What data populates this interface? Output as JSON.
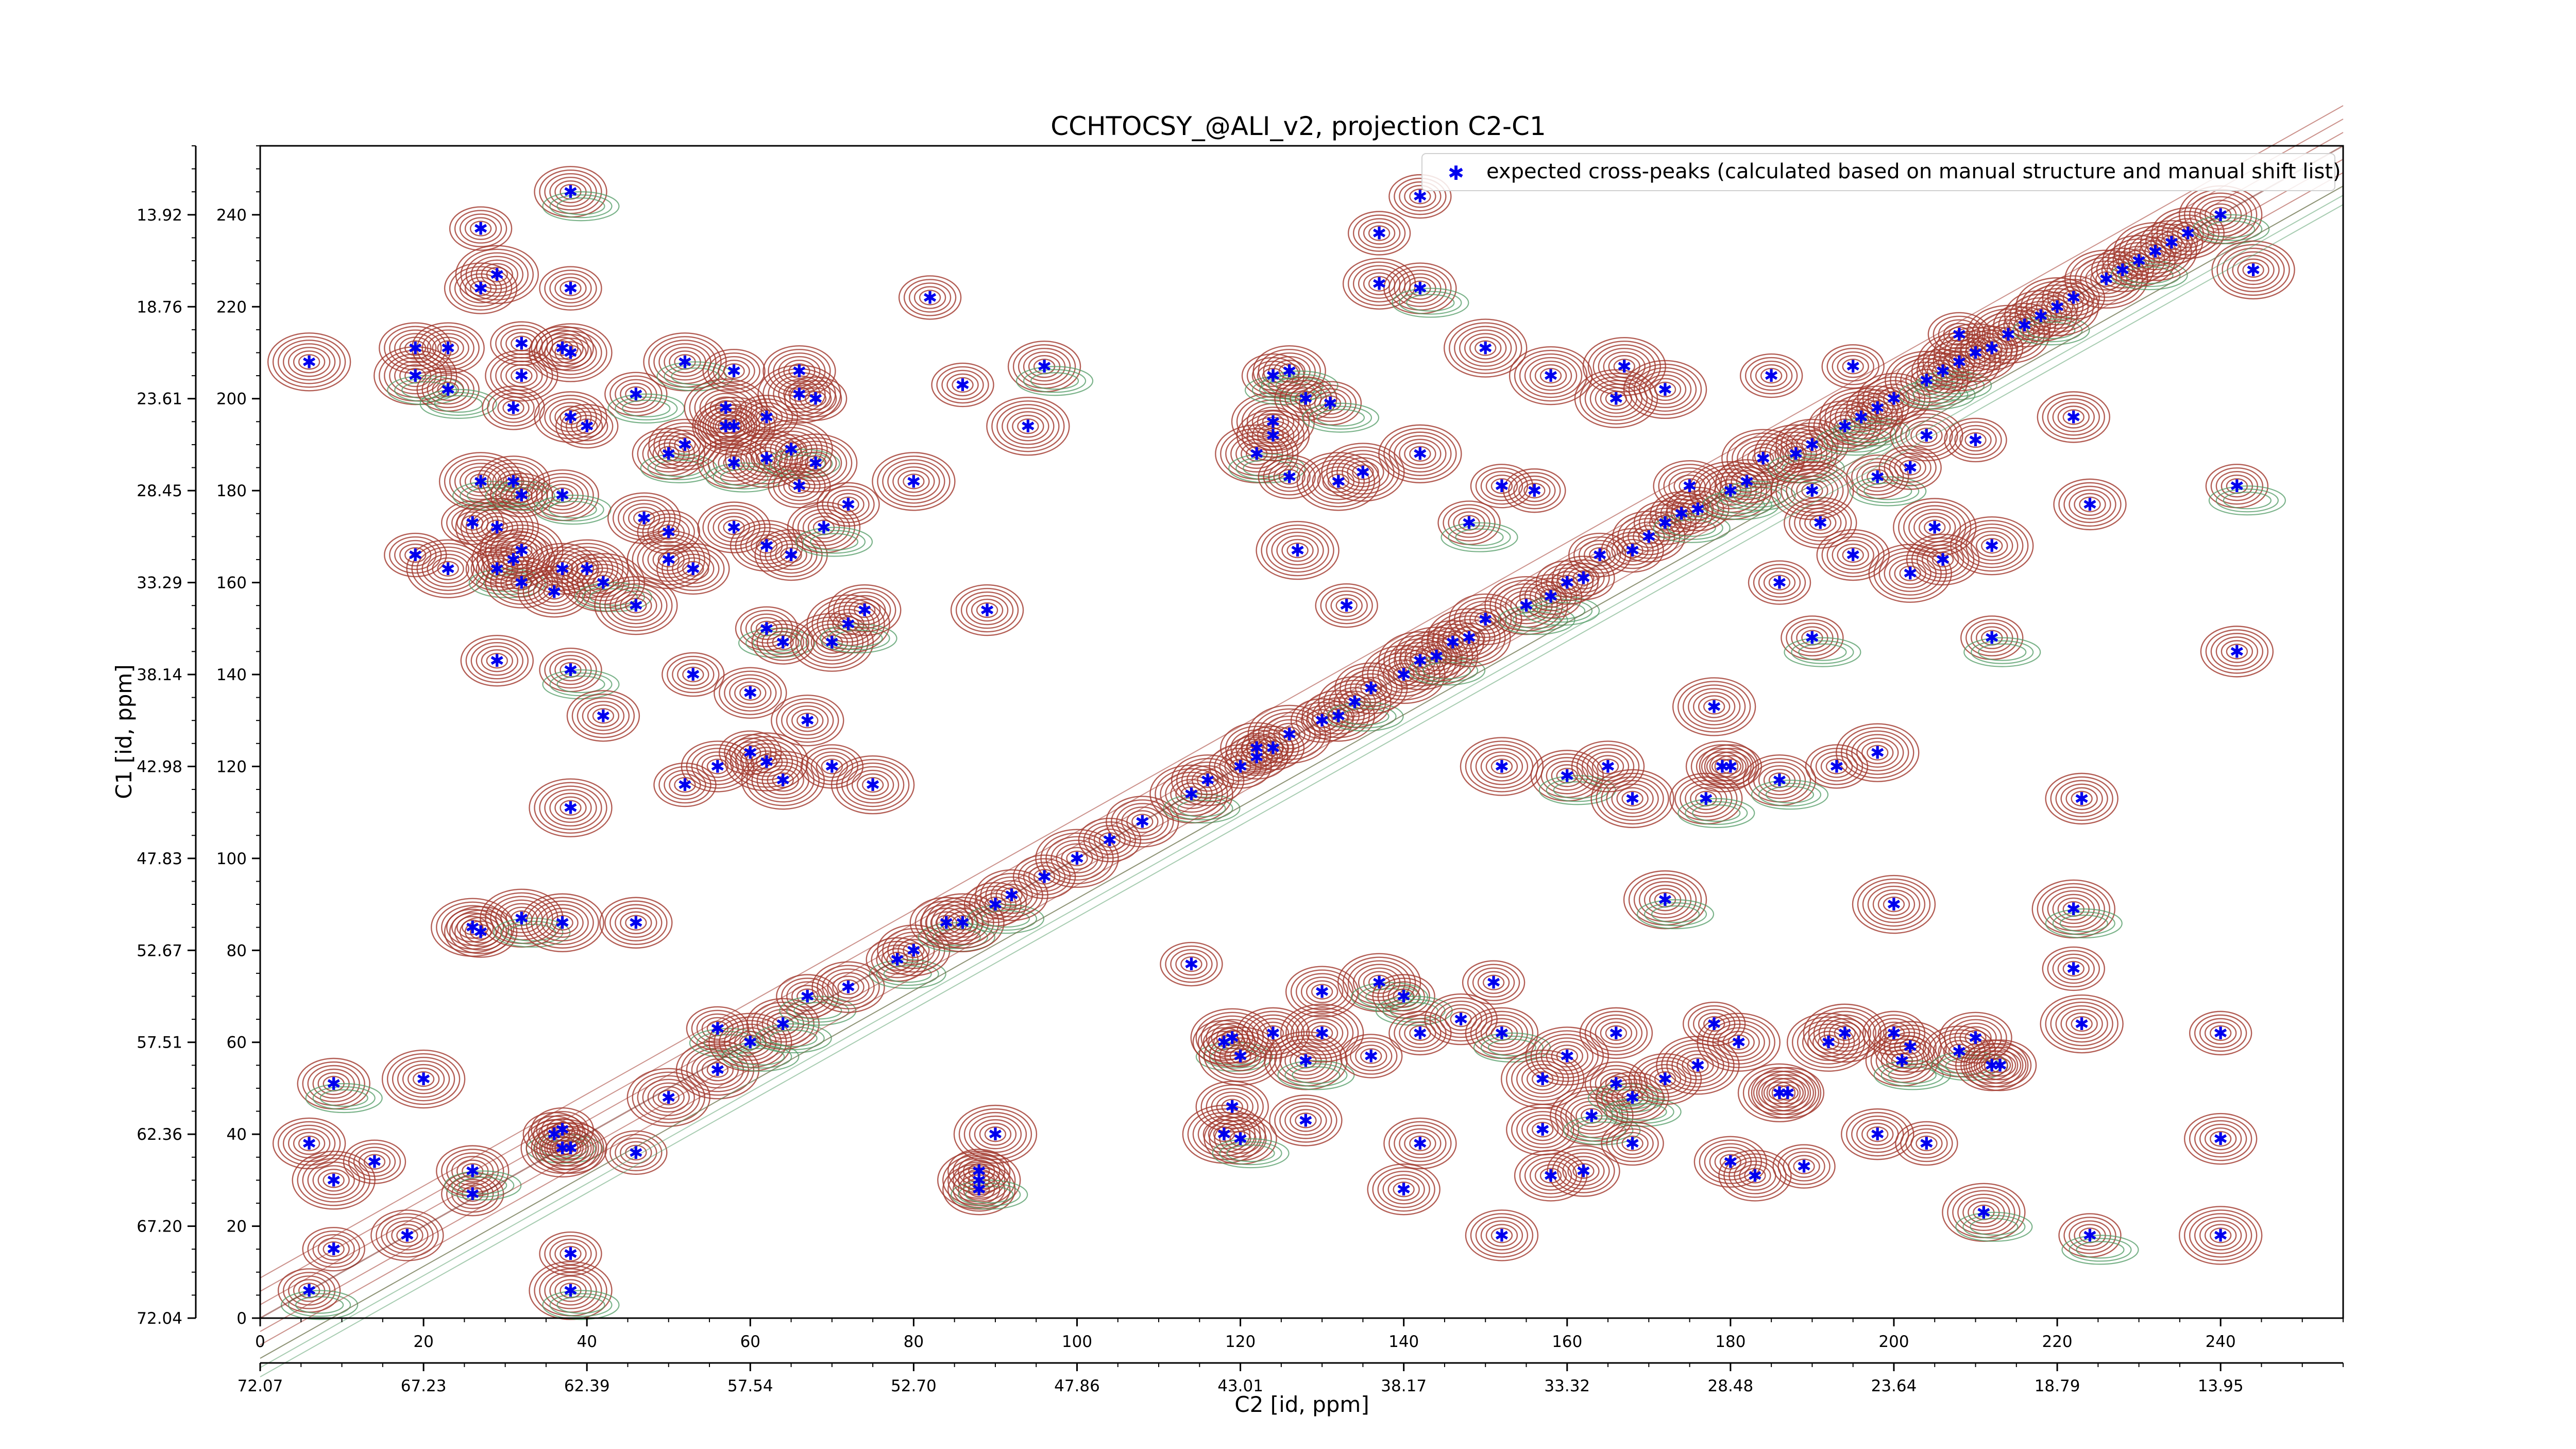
{
  "chart_data": {
    "type": "scatter",
    "title": "CCHTOCSY_@ALI_v2, projection C2-C1",
    "xlabel": "C2 [id, ppm]",
    "ylabel": "C1 [id, ppm]",
    "xlim": [
      0,
      255
    ],
    "ylim": [
      0,
      255
    ],
    "x_ticks": [
      0,
      20,
      40,
      60,
      80,
      100,
      120,
      140,
      160,
      180,
      200,
      220,
      240
    ],
    "y_ticks": [
      0,
      20,
      40,
      60,
      80,
      100,
      120,
      140,
      160,
      180,
      200,
      220,
      240
    ],
    "x_ppm_ticks": [
      "72.07",
      "67.23",
      "62.39",
      "57.54",
      "52.70",
      "47.86",
      "43.01",
      "38.17",
      "33.32",
      "28.48",
      "23.64",
      "18.79",
      "13.95"
    ],
    "y_ppm_ticks": [
      "72.04",
      "67.20",
      "62.36",
      "57.51",
      "52.67",
      "47.83",
      "42.98",
      "38.14",
      "33.29",
      "28.45",
      "23.61",
      "18.76",
      "13.92"
    ],
    "grid": false,
    "legend_position": "top-right",
    "colors": {
      "positive_contour": "#a0362b",
      "negative_contour": "#4f9a63",
      "marker": "#0000ee"
    },
    "series": [
      {
        "name": "expected cross-peaks (calculated based on manual structure and manual shift list)",
        "points": [
          [
            6,
            6
          ],
          [
            6,
            38
          ],
          [
            6,
            208
          ],
          [
            9,
            15
          ],
          [
            9,
            51
          ],
          [
            9,
            30
          ],
          [
            14,
            34
          ],
          [
            18,
            18
          ],
          [
            19,
            205
          ],
          [
            19,
            166
          ],
          [
            19,
            211
          ],
          [
            20,
            52
          ],
          [
            23,
            202
          ],
          [
            23,
            211
          ],
          [
            23,
            163
          ],
          [
            26,
            27
          ],
          [
            26,
            32
          ],
          [
            26,
            85
          ],
          [
            26,
            173
          ],
          [
            27,
            84
          ],
          [
            27,
            182
          ],
          [
            27,
            237
          ],
          [
            27,
            224
          ],
          [
            29,
            172
          ],
          [
            29,
            163
          ],
          [
            29,
            143
          ],
          [
            29,
            227
          ],
          [
            31,
            198
          ],
          [
            31,
            182
          ],
          [
            31,
            165
          ],
          [
            32,
            179
          ],
          [
            32,
            160
          ],
          [
            32,
            87
          ],
          [
            32,
            212
          ],
          [
            32,
            205
          ],
          [
            32,
            167
          ],
          [
            36,
            40
          ],
          [
            36,
            158
          ],
          [
            37,
            37
          ],
          [
            37,
            41
          ],
          [
            37,
            179
          ],
          [
            37,
            86
          ],
          [
            37,
            211
          ],
          [
            37,
            163
          ],
          [
            38,
            6
          ],
          [
            38,
            14
          ],
          [
            38,
            37
          ],
          [
            38,
            111
          ],
          [
            38,
            141
          ],
          [
            38,
            196
          ],
          [
            38,
            210
          ],
          [
            38,
            224
          ],
          [
            38,
            245
          ],
          [
            40,
            163
          ],
          [
            40,
            194
          ],
          [
            42,
            131
          ],
          [
            42,
            160
          ],
          [
            46,
            36
          ],
          [
            46,
            86
          ],
          [
            46,
            155
          ],
          [
            46,
            201
          ],
          [
            47,
            174
          ],
          [
            50,
            48
          ],
          [
            50,
            171
          ],
          [
            50,
            188
          ],
          [
            50,
            165
          ],
          [
            52,
            116
          ],
          [
            52,
            190
          ],
          [
            52,
            208
          ],
          [
            53,
            140
          ],
          [
            53,
            163
          ],
          [
            56,
            54
          ],
          [
            56,
            63
          ],
          [
            56,
            120
          ],
          [
            57,
            198
          ],
          [
            57,
            194
          ],
          [
            58,
            186
          ],
          [
            58,
            194
          ],
          [
            58,
            206
          ],
          [
            58,
            172
          ],
          [
            60,
            60
          ],
          [
            60,
            123
          ],
          [
            60,
            136
          ],
          [
            62,
            121
          ],
          [
            62,
            150
          ],
          [
            62,
            168
          ],
          [
            62,
            187
          ],
          [
            62,
            196
          ],
          [
            64,
            64
          ],
          [
            64,
            117
          ],
          [
            64,
            147
          ],
          [
            65,
            166
          ],
          [
            65,
            189
          ],
          [
            66,
            181
          ],
          [
            66,
            206
          ],
          [
            66,
            201
          ],
          [
            67,
            70
          ],
          [
            67,
            130
          ],
          [
            68,
            186
          ],
          [
            68,
            200
          ],
          [
            69,
            172
          ],
          [
            70,
            147
          ],
          [
            70,
            120
          ],
          [
            72,
            72
          ],
          [
            72,
            151
          ],
          [
            72,
            177
          ],
          [
            74,
            154
          ],
          [
            75,
            116
          ],
          [
            78,
            78
          ],
          [
            80,
            80
          ],
          [
            80,
            182
          ],
          [
            82,
            222
          ],
          [
            84,
            86
          ],
          [
            86,
            86
          ],
          [
            86,
            203
          ],
          [
            88,
            28
          ],
          [
            88,
            30
          ],
          [
            88,
            32
          ],
          [
            89,
            154
          ],
          [
            90,
            40
          ],
          [
            90,
            90
          ],
          [
            92,
            92
          ],
          [
            94,
            194
          ],
          [
            96,
            96
          ],
          [
            96,
            207
          ],
          [
            100,
            100
          ],
          [
            104,
            104
          ],
          [
            108,
            108
          ],
          [
            114,
            114
          ],
          [
            114,
            77
          ],
          [
            116,
            117
          ],
          [
            118,
            40
          ],
          [
            118,
            60
          ],
          [
            119,
            46
          ],
          [
            119,
            61
          ],
          [
            120,
            120
          ],
          [
            120,
            39
          ],
          [
            120,
            57
          ],
          [
            122,
            122
          ],
          [
            122,
            124
          ],
          [
            122,
            188
          ],
          [
            124,
            124
          ],
          [
            124,
            62
          ],
          [
            124,
            195
          ],
          [
            124,
            205
          ],
          [
            124,
            192
          ],
          [
            126,
            127
          ],
          [
            126,
            183
          ],
          [
            126,
            206
          ],
          [
            127,
            167
          ],
          [
            128,
            200
          ],
          [
            128,
            43
          ],
          [
            128,
            56
          ],
          [
            130,
            130
          ],
          [
            130,
            71
          ],
          [
            130,
            62
          ],
          [
            131,
            199
          ],
          [
            132,
            131
          ],
          [
            132,
            182
          ],
          [
            133,
            155
          ],
          [
            134,
            134
          ],
          [
            135,
            184
          ],
          [
            136,
            57
          ],
          [
            136,
            137
          ],
          [
            137,
            73
          ],
          [
            137,
            236
          ],
          [
            137,
            225
          ],
          [
            140,
            140
          ],
          [
            140,
            70
          ],
          [
            140,
            28
          ],
          [
            142,
            143
          ],
          [
            142,
            244
          ],
          [
            142,
            224
          ],
          [
            142,
            188
          ],
          [
            142,
            62
          ],
          [
            142,
            38
          ],
          [
            144,
            144
          ],
          [
            146,
            147
          ],
          [
            147,
            65
          ],
          [
            148,
            148
          ],
          [
            148,
            173
          ],
          [
            150,
            152
          ],
          [
            150,
            211
          ],
          [
            151,
            73
          ],
          [
            152,
            62
          ],
          [
            152,
            120
          ],
          [
            152,
            181
          ],
          [
            152,
            18
          ],
          [
            155,
            155
          ],
          [
            156,
            180
          ],
          [
            157,
            41
          ],
          [
            157,
            52
          ],
          [
            158,
            157
          ],
          [
            158,
            31
          ],
          [
            158,
            205
          ],
          [
            160,
            160
          ],
          [
            160,
            118
          ],
          [
            160,
            57
          ],
          [
            162,
            161
          ],
          [
            162,
            32
          ],
          [
            163,
            44
          ],
          [
            164,
            166
          ],
          [
            165,
            120
          ],
          [
            166,
            200
          ],
          [
            166,
            51
          ],
          [
            166,
            62
          ],
          [
            167,
            207
          ],
          [
            168,
            167
          ],
          [
            168,
            48
          ],
          [
            168,
            113
          ],
          [
            168,
            38
          ],
          [
            170,
            170
          ],
          [
            172,
            91
          ],
          [
            172,
            173
          ],
          [
            172,
            52
          ],
          [
            172,
            202
          ],
          [
            174,
            175
          ],
          [
            175,
            181
          ],
          [
            176,
            55
          ],
          [
            176,
            176
          ],
          [
            177,
            113
          ],
          [
            178,
            133
          ],
          [
            178,
            64
          ],
          [
            179,
            120
          ],
          [
            180,
            180
          ],
          [
            180,
            120
          ],
          [
            180,
            34
          ],
          [
            181,
            60
          ],
          [
            182,
            182
          ],
          [
            183,
            31
          ],
          [
            184,
            187
          ],
          [
            185,
            205
          ],
          [
            186,
            117
          ],
          [
            186,
            49
          ],
          [
            186,
            160
          ],
          [
            187,
            49
          ],
          [
            188,
            188
          ],
          [
            189,
            33
          ],
          [
            190,
            190
          ],
          [
            190,
            180
          ],
          [
            190,
            148
          ],
          [
            191,
            173
          ],
          [
            192,
            60
          ],
          [
            193,
            120
          ],
          [
            194,
            194
          ],
          [
            194,
            62
          ],
          [
            195,
            207
          ],
          [
            195,
            166
          ],
          [
            196,
            196
          ],
          [
            198,
            198
          ],
          [
            198,
            40
          ],
          [
            198,
            123
          ],
          [
            198,
            183
          ],
          [
            200,
            200
          ],
          [
            200,
            90
          ],
          [
            200,
            62
          ],
          [
            201,
            56
          ],
          [
            202,
            162
          ],
          [
            202,
            185
          ],
          [
            202,
            59
          ],
          [
            204,
            204
          ],
          [
            204,
            38
          ],
          [
            204,
            192
          ],
          [
            205,
            172
          ],
          [
            206,
            206
          ],
          [
            206,
            165
          ],
          [
            208,
            208
          ],
          [
            208,
            214
          ],
          [
            208,
            58
          ],
          [
            210,
            210
          ],
          [
            210,
            191
          ],
          [
            210,
            61
          ],
          [
            211,
            23
          ],
          [
            212,
            211
          ],
          [
            212,
            55
          ],
          [
            212,
            168
          ],
          [
            212,
            148
          ],
          [
            213,
            55
          ],
          [
            214,
            214
          ],
          [
            216,
            216
          ],
          [
            218,
            218
          ],
          [
            220,
            220
          ],
          [
            222,
            222
          ],
          [
            222,
            196
          ],
          [
            222,
            89
          ],
          [
            222,
            76
          ],
          [
            223,
            113
          ],
          [
            223,
            64
          ],
          [
            224,
            18
          ],
          [
            224,
            177
          ],
          [
            226,
            226
          ],
          [
            228,
            228
          ],
          [
            230,
            230
          ],
          [
            232,
            232
          ],
          [
            234,
            234
          ],
          [
            236,
            236
          ],
          [
            240,
            240
          ],
          [
            240,
            62
          ],
          [
            240,
            39
          ],
          [
            240,
            18
          ],
          [
            242,
            181
          ],
          [
            242,
            145
          ],
          [
            244,
            228
          ]
        ]
      }
    ]
  }
}
